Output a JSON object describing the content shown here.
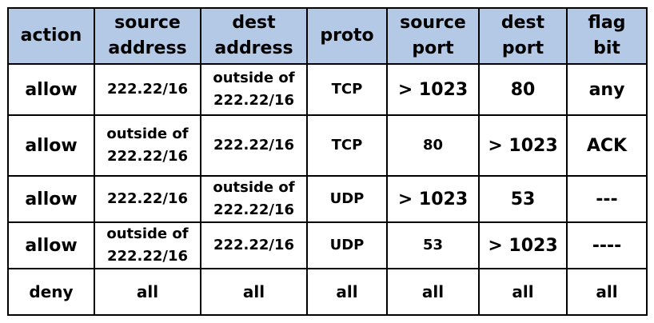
{
  "headers": [
    {
      "line1": "action",
      "line2": ""
    },
    {
      "line1": "source",
      "line2": "address"
    },
    {
      "line1": "dest",
      "line2": "address"
    },
    {
      "line1": "proto",
      "line2": ""
    },
    {
      "line1": "source",
      "line2": "port"
    },
    {
      "line1": "dest",
      "line2": "port"
    },
    {
      "line1": "flag",
      "line2": "bit"
    }
  ],
  "rows": [
    {
      "action": "allow",
      "source_address": [
        "222.22/16"
      ],
      "dest_address": [
        "outside of",
        "222.22/16"
      ],
      "proto": "TCP",
      "source_port": "> 1023",
      "dest_port": "80",
      "flag_bit": "any"
    },
    {
      "action": "allow",
      "source_address": [
        "outside of",
        "222.22/16"
      ],
      "dest_address": [
        "222.22/16"
      ],
      "proto": "TCP",
      "source_port": "80",
      "dest_port": "> 1023",
      "flag_bit": "ACK"
    },
    {
      "action": "allow",
      "source_address": [
        "222.22/16"
      ],
      "dest_address": [
        "outside of",
        "222.22/16"
      ],
      "proto": "UDP",
      "source_port": "> 1023",
      "dest_port": "53",
      "flag_bit": "---"
    },
    {
      "action": "allow",
      "source_address": [
        "outside of",
        "222.22/16"
      ],
      "dest_address": [
        "222.22/16"
      ],
      "proto": "UDP",
      "source_port": "53",
      "dest_port": "> 1023",
      "flag_bit": "----"
    },
    {
      "action": "deny",
      "source_address": [
        "all"
      ],
      "dest_address": [
        "all"
      ],
      "proto": "all",
      "source_port": "all",
      "dest_port": "all",
      "flag_bit": "all"
    }
  ],
  "colors": {
    "header_background": "#b3c9e6",
    "border": "#000000",
    "text": "#000000"
  }
}
